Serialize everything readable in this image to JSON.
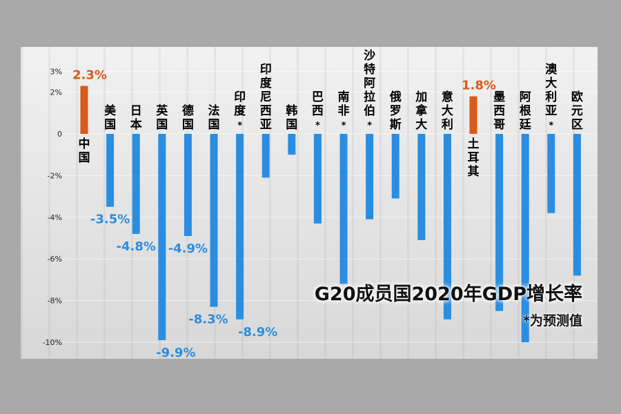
{
  "chart_data": {
    "type": "bar",
    "title": "G20成员国2020年GDP增长率",
    "subtitle": "*为预测值",
    "ylim": [
      -10,
      3
    ],
    "yticks": [
      "3%",
      "2%",
      "0",
      "-2%",
      "-4%",
      "-6%",
      "-8%",
      "-10%"
    ],
    "ytick_values": [
      3,
      2,
      0,
      -2,
      -4,
      -6,
      -8,
      -10
    ],
    "categories": [
      "中国",
      "美国",
      "日本",
      "英国",
      "德国",
      "法国",
      "印度*",
      "印度尼西亚",
      "韩国",
      "巴西*",
      "南非*",
      "沙特阿拉伯*",
      "俄罗斯",
      "加拿大",
      "意大利",
      "土耳其",
      "墨西哥",
      "阿根廷",
      "澳大利亚*",
      "欧元区"
    ],
    "values": [
      2.3,
      -3.5,
      -4.8,
      -9.9,
      -4.9,
      -8.3,
      -8.9,
      -2.1,
      -1.0,
      -4.3,
      -7.2,
      -4.1,
      -3.1,
      -5.1,
      -8.9,
      1.8,
      -8.5,
      -10.0,
      -3.8,
      -6.8
    ],
    "value_labels": [
      "2.3%",
      "-3.5%",
      "-4.8%",
      "-9.9%",
      "-4.9%",
      "-8.3%",
      "-8.9%",
      "",
      "",
      "",
      "",
      "",
      "",
      "",
      "",
      "1.8%",
      "",
      "",
      "",
      ""
    ],
    "colors": {
      "positive": "#d95a1a",
      "negative": "#2b8de0",
      "positive_label": "#d95a1a",
      "negative_label": "#2b8de0"
    }
  }
}
